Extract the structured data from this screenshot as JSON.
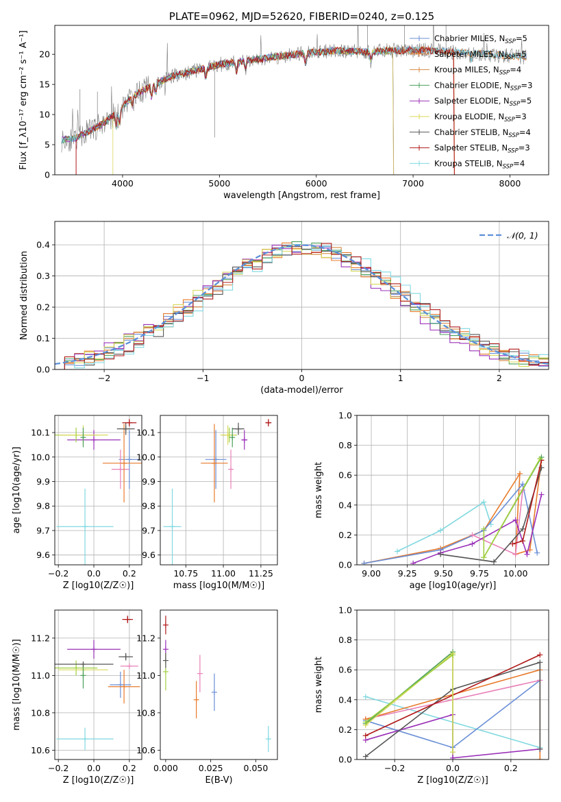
{
  "colors": {
    "Chabrier MILES": "#6a8fd6",
    "Salpeter MILES": "#e87a2b",
    "Kroupa MILES": "#d88a45",
    "Chabrier ELODIE": "#4aa05a",
    "Salpeter ELODIE": "#9a30b8",
    "Kroupa ELODIE": "#d8d85a",
    "Chabrier STELIB": "#555555",
    "Salpeter STELIB": "#b01818",
    "Kroupa STELIB": "#7fd8e0",
    "pink": "#e880b8",
    "lime": "#a0d040",
    "normal": "#5b8fd8",
    "grid": "#b0b0b0"
  },
  "chart_data": [
    {
      "id": "spectrum",
      "type": "line",
      "title": "PLATE=0962, MJD=52620, FIBERID=0240, z=0.125",
      "xlabel": "wavelength [Angstrom, rest frame]",
      "ylabel": "Flux [f_λ10⁻¹⁷ erg cm⁻² s⁻¹ A⁻¹]",
      "xlim": [
        3300,
        8400
      ],
      "ylim": [
        0,
        24.8
      ],
      "xticks": [
        4000,
        5000,
        6000,
        7000,
        8000
      ],
      "yticks": [
        0,
        5,
        10,
        15,
        20
      ],
      "legend_position": "right",
      "continuum": {
        "x": [
          3370,
          3500,
          3650,
          3800,
          3950,
          4100,
          4300,
          4500,
          4800,
          5000,
          5300,
          5600,
          5900,
          6200,
          6500,
          6800,
          7100,
          7400,
          7700,
          8000,
          8170
        ],
        "y": [
          5.8,
          6.0,
          7.2,
          8.5,
          10.5,
          13.0,
          14.8,
          16.3,
          17.5,
          18.3,
          19.0,
          19.6,
          20.2,
          20.6,
          20.4,
          20.6,
          20.7,
          20.4,
          20.1,
          19.7,
          19.5
        ]
      },
      "series": [
        {
          "name": "Chabrier MILES",
          "nssp": "5",
          "start": 3370,
          "end": 8170,
          "drop_at": null
        },
        {
          "name": "Salpeter MILES",
          "nssp": "5",
          "start": 3370,
          "end": 8170,
          "drop_at": null
        },
        {
          "name": "Kroupa MILES",
          "nssp": "4",
          "start": 3370,
          "end": 7450,
          "drop_at": 7420
        },
        {
          "name": "Chabrier ELODIE",
          "nssp": "3",
          "start": 3370,
          "end": 6800,
          "drop_at": 6790
        },
        {
          "name": "Salpeter ELODIE",
          "nssp": "5",
          "start": 3370,
          "end": 6800,
          "drop_at": 6790
        },
        {
          "name": "Kroupa ELODIE",
          "nssp": "3",
          "start": 3900,
          "end": 6800,
          "drop_at": 6790
        },
        {
          "name": "Chabrier STELIB",
          "nssp": "4",
          "start": 3370,
          "end": 8170,
          "drop_at": null
        },
        {
          "name": "Salpeter STELIB",
          "nssp": "3",
          "start": 3520,
          "end": 7450,
          "drop_at": 7420
        },
        {
          "name": "Kroupa STELIB",
          "nssp": "4",
          "start": 3370,
          "end": 8170,
          "drop_at": null
        }
      ]
    },
    {
      "id": "residuals",
      "type": "histogram",
      "xlabel": "(data-model)/error",
      "ylabel": "Normed distribution",
      "xlim": [
        -2.5,
        2.5
      ],
      "ylim": [
        0,
        0.475
      ],
      "xticks": [
        -2,
        -1,
        0,
        1,
        2
      ],
      "yticks": [
        0.0,
        0.1,
        0.2,
        0.3,
        0.4
      ],
      "grid": true,
      "legend": {
        "label": "𝒩(0, 1)",
        "position": "top-right"
      },
      "bin_width": 0.1,
      "normal_curve": {
        "mean": 0,
        "sigma": 1
      }
    },
    {
      "id": "age-z",
      "type": "scatter",
      "xlabel": "Z [log10(Z/Z☉)]",
      "ylabel": "age  [log10(age/yr)]",
      "xlim": [
        -0.22,
        0.27
      ],
      "ylim": [
        9.56,
        10.17
      ],
      "xticks": [
        -0.2,
        0.0,
        0.2
      ],
      "yticks": [
        9.6,
        9.7,
        9.8,
        9.9,
        10.0,
        10.1
      ],
      "grid": true,
      "points": [
        {
          "series": "Kroupa STELIB",
          "x": -0.05,
          "xerr": 0.16,
          "y": 9.716,
          "yerr": 0.155
        },
        {
          "series": "Salpeter ELODIE",
          "x": 0.0,
          "xerr": 0.15,
          "y": 10.07,
          "yerr": 0.04
        },
        {
          "series": "lime",
          "x": -0.1,
          "xerr": 0.12,
          "y": 10.09,
          "yerr": 0.03
        },
        {
          "series": "Kroupa ELODIE",
          "x": -0.06,
          "xerr": 0.14,
          "y": 10.09,
          "yerr": 0.04
        },
        {
          "series": "Chabrier ELODIE",
          "x": -0.06,
          "xerr": 0.0,
          "y": 10.08,
          "yerr": 0.04
        },
        {
          "series": "Chabrier MILES",
          "x": 0.2,
          "xerr": 0.06,
          "y": 9.99,
          "yerr": 0.12
        },
        {
          "series": "pink",
          "x": 0.15,
          "xerr": 0.05,
          "y": 9.95,
          "yerr": 0.08
        },
        {
          "series": "Salpeter MILES",
          "x": 0.17,
          "xerr": 0.12,
          "y": 9.975,
          "yerr": 0.16
        },
        {
          "series": "Chabrier STELIB",
          "x": 0.18,
          "xerr": 0.05,
          "y": 10.115,
          "yerr": 0.025
        },
        {
          "series": "Salpeter STELIB",
          "x": 0.2,
          "xerr": 0.04,
          "y": 10.14,
          "yerr": 0.015
        }
      ]
    },
    {
      "id": "age-mass",
      "type": "scatter",
      "xlabel": "mass [log10(M/M☉)]",
      "ylabel": "",
      "xlim": [
        10.58,
        11.36
      ],
      "ylim": [
        9.56,
        10.17
      ],
      "xticks": [
        10.75,
        11.0,
        11.25
      ],
      "yticks": [
        9.6,
        9.7,
        9.8,
        9.9,
        10.0,
        10.1
      ],
      "grid": true,
      "points": [
        {
          "series": "Kroupa STELIB",
          "x": 10.66,
          "xerr": 0.06,
          "y": 9.716,
          "yerr": 0.155
        },
        {
          "series": "Salpeter ELODIE",
          "x": 11.14,
          "xerr": 0.02,
          "y": 10.07,
          "yerr": 0.04
        },
        {
          "series": "lime",
          "x": 11.04,
          "xerr": 0.05,
          "y": 10.09,
          "yerr": 0.03
        },
        {
          "series": "Kroupa ELODIE",
          "x": 11.03,
          "xerr": 0.05,
          "y": 10.09,
          "yerr": 0.04
        },
        {
          "series": "Chabrier ELODIE",
          "x": 11.06,
          "xerr": 0.0,
          "y": 10.08,
          "yerr": 0.04
        },
        {
          "series": "Chabrier MILES",
          "x": 10.95,
          "xerr": 0.07,
          "y": 9.99,
          "yerr": 0.12
        },
        {
          "series": "pink",
          "x": 11.05,
          "xerr": 0.0,
          "y": 9.95,
          "yerr": 0.08
        },
        {
          "series": "Salpeter MILES",
          "x": 10.94,
          "xerr": 0.09,
          "y": 9.975,
          "yerr": 0.16
        },
        {
          "series": "Chabrier STELIB",
          "x": 11.1,
          "xerr": 0.04,
          "y": 10.115,
          "yerr": 0.025
        },
        {
          "series": "Salpeter STELIB",
          "x": 11.3,
          "xerr": 0.02,
          "y": 10.14,
          "yerr": 0.015
        }
      ]
    },
    {
      "id": "weight-age",
      "type": "line",
      "xlabel": "age  [log10(age/yr)]",
      "ylabel": "mass weight",
      "xlim": [
        8.9,
        10.23
      ],
      "ylim": [
        0,
        1.0
      ],
      "xticks": [
        9.0,
        9.25,
        9.5,
        9.75,
        10.0
      ],
      "yticks": [
        0.0,
        0.2,
        0.4,
        0.6,
        0.8,
        1.0
      ],
      "grid": true,
      "series": [
        {
          "name": "Kroupa STELIB",
          "x": [
            9.18,
            9.48,
            9.78,
            9.83
          ],
          "y": [
            0.09,
            0.23,
            0.42,
            0.27
          ]
        },
        {
          "name": "Salpeter MILES",
          "x": [
            8.95,
            9.48,
            9.78,
            10.03,
            10.0,
            10.1,
            10.18
          ],
          "y": [
            0.01,
            0.11,
            0.23,
            0.61,
            0.07,
            0.1,
            0.7
          ]
        },
        {
          "name": "Chabrier MILES",
          "x": [
            8.95,
            9.48,
            9.78,
            10.05,
            10.15
          ],
          "y": [
            0.01,
            0.1,
            0.23,
            0.54,
            0.08
          ]
        },
        {
          "name": "pink",
          "x": [
            9.7,
            10.0,
            10.05
          ],
          "y": [
            0.2,
            0.07,
            0.5
          ]
        },
        {
          "name": "Salpeter ELODIE",
          "x": [
            9.29,
            9.48,
            9.7,
            10.0,
            10.08,
            10.18
          ],
          "y": [
            0.01,
            0.08,
            0.14,
            0.3,
            0.07,
            0.47
          ]
        },
        {
          "name": "Chabrier STELIB",
          "x": [
            9.48,
            9.85,
            10.05,
            10.18
          ],
          "y": [
            0.07,
            0.02,
            0.24,
            0.65
          ]
        },
        {
          "name": "Salpeter STELIB",
          "x": [
            9.98,
            10.05,
            10.18
          ],
          "y": [
            0.14,
            0.16,
            0.7
          ]
        },
        {
          "name": "Chabrier ELODIE",
          "x": [
            9.78,
            10.18
          ],
          "y": [
            0.05,
            0.72
          ]
        },
        {
          "name": "Kroupa ELODIE",
          "x": [
            9.78,
            10.17
          ],
          "y": [
            0.05,
            0.71
          ]
        },
        {
          "name": "lime",
          "x": [
            9.78,
            9.78,
            10.17
          ],
          "y": [
            0.24,
            0.05,
            0.71
          ]
        }
      ]
    },
    {
      "id": "mass-z",
      "type": "scatter",
      "xlabel": "Z [log10(Z/Z☉)]",
      "ylabel": "mass [log10(M/M☉)]",
      "xlim": [
        -0.22,
        0.27
      ],
      "ylim": [
        10.55,
        11.35
      ],
      "xticks": [
        -0.2,
        0.0,
        0.2
      ],
      "yticks": [
        10.6,
        10.8,
        11.0,
        11.2
      ],
      "grid": true,
      "points": [
        {
          "series": "Kroupa STELIB",
          "x": -0.05,
          "xerr": 0.16,
          "y": 10.66,
          "yerr": 0.06
        },
        {
          "series": "Salpeter ELODIE",
          "x": 0.0,
          "xerr": 0.15,
          "y": 11.14,
          "yerr": 0.05
        },
        {
          "series": "lime",
          "x": -0.1,
          "xerr": 0.12,
          "y": 11.04,
          "yerr": 0.04
        },
        {
          "series": "Kroupa ELODIE",
          "x": -0.06,
          "xerr": 0.14,
          "y": 11.03,
          "yerr": 0.04
        },
        {
          "series": "Chabrier ELODIE",
          "x": -0.06,
          "xerr": 0.0,
          "y": 11.0,
          "yerr": 0.07
        },
        {
          "series": "Chabrier STELIB",
          "x": -0.06,
          "xerr": 0.17,
          "y": 11.06,
          "yerr": 0.0
        },
        {
          "series": "Chabrier MILES",
          "x": 0.15,
          "xerr": 0.06,
          "y": 10.95,
          "yerr": 0.07
        },
        {
          "series": "pink",
          "x": 0.2,
          "xerr": 0.05,
          "y": 11.05,
          "yerr": 0.0
        },
        {
          "series": "Salpeter MILES",
          "x": 0.17,
          "xerr": 0.09,
          "y": 10.94,
          "yerr": 0.09
        },
        {
          "series": "Chabrier STELIB",
          "x": 0.18,
          "xerr": 0.04,
          "y": 11.1,
          "yerr": 0.02
        },
        {
          "series": "Salpeter STELIB",
          "x": 0.19,
          "xerr": 0.03,
          "y": 11.3,
          "yerr": 0.02
        }
      ]
    },
    {
      "id": "mass-ebv",
      "type": "scatter",
      "xlabel": "E(B-V)",
      "ylabel": "",
      "xlim": [
        -0.003,
        0.062
      ],
      "ylim": [
        10.55,
        11.35
      ],
      "xticks": [
        0.0,
        0.025,
        0.05
      ],
      "xticklabels": [
        "0.000",
        "0.025",
        "0.050"
      ],
      "yticks": [
        10.6,
        10.8,
        11.0,
        11.2
      ],
      "grid": false,
      "points": [
        {
          "series": "Salpeter STELIB",
          "x": 0.0,
          "xerr": 0,
          "y": 11.27,
          "yerr": 0.05
        },
        {
          "series": "Salpeter ELODIE",
          "x": 0.0,
          "xerr": 0,
          "y": 11.14,
          "yerr": 0.05
        },
        {
          "series": "lime",
          "x": 0.0,
          "xerr": 0,
          "y": 11.02,
          "yerr": 0.1
        },
        {
          "series": "Chabrier STELIB",
          "x": 0.0,
          "xerr": 0,
          "y": 11.08,
          "yerr": 0.04
        },
        {
          "series": "Salpeter MILES",
          "x": 0.017,
          "xerr": 0,
          "y": 10.87,
          "yerr": 0.1
        },
        {
          "series": "pink",
          "x": 0.019,
          "xerr": 0,
          "y": 11.01,
          "yerr": 0.1
        },
        {
          "series": "Chabrier MILES",
          "x": 0.027,
          "xerr": 0,
          "y": 10.91,
          "yerr": 0.1
        },
        {
          "series": "Kroupa STELIB",
          "x": 0.057,
          "xerr": 0,
          "y": 10.66,
          "yerr": 0.07
        }
      ]
    },
    {
      "id": "weight-z",
      "type": "line",
      "xlabel": "Z [log10(Z/Z☉)]",
      "ylabel": "mass weight",
      "xlim": [
        -0.33,
        0.33
      ],
      "ylim": [
        0,
        1.0
      ],
      "xticks": [
        -0.2,
        0.0,
        0.2
      ],
      "yticks": [
        0.0,
        0.2,
        0.4,
        0.6,
        0.8,
        1.0
      ],
      "grid": true,
      "series": [
        {
          "name": "Kroupa STELIB",
          "x": [
            -0.3,
            0.3
          ],
          "y": [
            0.42,
            0.08
          ]
        },
        {
          "name": "Chabrier MILES",
          "x": [
            -0.3,
            0.0,
            0.3
          ],
          "y": [
            0.26,
            0.08,
            0.53
          ]
        },
        {
          "name": "pink",
          "x": [
            -0.3,
            0.3
          ],
          "y": [
            0.27,
            0.53
          ]
        },
        {
          "name": "Salpeter MILES",
          "x": [
            -0.3,
            0.3,
            0.3
          ],
          "y": [
            0.27,
            0.6,
            0.0
          ]
        },
        {
          "name": "Salpeter ELODIE",
          "x": [
            -0.3,
            0.0,
            0.0,
            0.3
          ],
          "y": [
            0.13,
            0.3,
            0.01,
            0.07
          ]
        },
        {
          "name": "Chabrier STELIB",
          "x": [
            -0.3,
            0.0,
            0.3,
            0.3
          ],
          "y": [
            0.02,
            0.47,
            0.65,
            0.07
          ]
        },
        {
          "name": "Salpeter STELIB",
          "x": [
            -0.3,
            0.3
          ],
          "y": [
            0.16,
            0.7
          ]
        },
        {
          "name": "Chabrier ELODIE",
          "x": [
            -0.3,
            0.0,
            0.0
          ],
          "y": [
            0.24,
            0.72,
            0.05
          ]
        },
        {
          "name": "Kroupa ELODIE",
          "x": [
            -0.3,
            0.0,
            0.0
          ],
          "y": [
            0.23,
            0.71,
            0.05
          ]
        },
        {
          "name": "lime",
          "x": [
            -0.3,
            0.0
          ],
          "y": [
            0.25,
            0.7
          ]
        }
      ]
    }
  ]
}
